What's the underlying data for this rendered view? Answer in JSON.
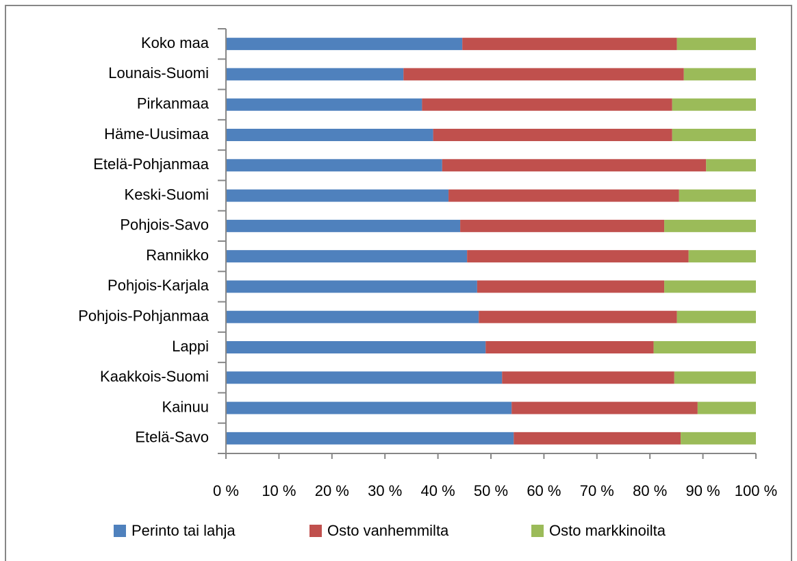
{
  "chart_data": {
    "type": "stacked-barh",
    "categories": [
      "Koko maa",
      "Lounais-Suomi",
      "Pirkanmaa",
      "Häme-Uusimaa",
      "Etelä-Pohjanmaa",
      "Keski-Suomi",
      "Pohjois-Savo",
      "Rannikko",
      "Pohjois-Karjala",
      "Pohjois-Pohjanmaa",
      "Lappi",
      "Kaakkois-Suomi",
      "Kainuu",
      "Etelä-Savo"
    ],
    "series": [
      {
        "name": "Perinto tai lahja",
        "color": "#4f81bd",
        "values": [
          44.6,
          33.5,
          37.0,
          39.1,
          40.8,
          42.0,
          44.2,
          45.5,
          47.4,
          47.7,
          49.0,
          52.1,
          53.9,
          54.3
        ]
      },
      {
        "name": "Osto vanhemmilta",
        "color": "#c0504d",
        "values": [
          40.5,
          52.9,
          47.2,
          45.1,
          49.8,
          43.5,
          38.5,
          41.8,
          35.3,
          37.4,
          31.7,
          32.5,
          35.1,
          31.5
        ]
      },
      {
        "name": "Osto markkinoilta",
        "color": "#9bbb59",
        "values": [
          14.9,
          13.6,
          15.8,
          15.8,
          9.4,
          14.5,
          17.3,
          12.7,
          17.3,
          14.9,
          19.3,
          15.4,
          11.0,
          14.2
        ]
      }
    ],
    "xlim": [
      0,
      100
    ],
    "xticks": [
      {
        "value": 0,
        "label": "0 %"
      },
      {
        "value": 10,
        "label": "10 %"
      },
      {
        "value": 20,
        "label": "20 %"
      },
      {
        "value": 30,
        "label": "30 %"
      },
      {
        "value": 40,
        "label": "40 %"
      },
      {
        "value": 50,
        "label": "50 %"
      },
      {
        "value": 60,
        "label": "60 %"
      },
      {
        "value": 70,
        "label": "70 %"
      },
      {
        "value": 80,
        "label": "80 %"
      },
      {
        "value": 90,
        "label": "90 %"
      },
      {
        "value": 100,
        "label": "100 %"
      }
    ],
    "legend": "bottom"
  }
}
